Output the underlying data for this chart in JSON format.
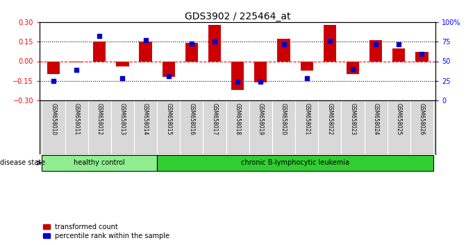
{
  "title": "GDS3902 / 225464_at",
  "samples": [
    "GSM658010",
    "GSM658011",
    "GSM658012",
    "GSM658013",
    "GSM658014",
    "GSM658015",
    "GSM658016",
    "GSM658017",
    "GSM658018",
    "GSM658019",
    "GSM658020",
    "GSM658021",
    "GSM658022",
    "GSM658023",
    "GSM658024",
    "GSM658025",
    "GSM658026"
  ],
  "red_values": [
    -0.1,
    -0.01,
    0.15,
    -0.04,
    0.15,
    -0.12,
    0.14,
    0.28,
    -0.22,
    -0.16,
    0.17,
    -0.07,
    0.28,
    -0.1,
    0.16,
    0.1,
    0.07
  ],
  "blue_values": [
    -0.15,
    -0.065,
    0.195,
    -0.13,
    0.16,
    -0.115,
    0.135,
    0.15,
    -0.155,
    -0.155,
    0.128,
    -0.13,
    0.155,
    -0.06,
    0.128,
    0.128,
    0.055
  ],
  "disease_groups": [
    {
      "label": "healthy control",
      "start": 0,
      "end": 5,
      "color": "#90EE90"
    },
    {
      "label": "chronic B-lymphocytic leukemia",
      "start": 5,
      "end": 17,
      "color": "#32CD32"
    }
  ],
  "disease_state_label": "disease state",
  "ylim": [
    -0.3,
    0.3
  ],
  "y2lim": [
    0,
    100
  ],
  "yticks": [
    -0.3,
    -0.15,
    0,
    0.15,
    0.3
  ],
  "y2ticks": [
    0,
    25,
    50,
    75,
    100
  ],
  "y2ticklabels": [
    "0",
    "25",
    "50",
    "75",
    "100%"
  ],
  "hlines": [
    -0.15,
    0.0,
    0.15
  ],
  "hline_styles": [
    "dotted",
    "dashed_red",
    "dotted"
  ],
  "bar_color": "#CC0000",
  "dot_color": "#0000CC",
  "bar_width": 0.55,
  "dot_size": 25,
  "legend_items": [
    "transformed count",
    "percentile rank within the sample"
  ],
  "legend_colors": [
    "#CC0000",
    "#0000CC"
  ],
  "background_color": "#ffffff",
  "title_fontsize": 10,
  "tick_fontsize": 7,
  "sample_label_fontsize": 5.5,
  "disease_fontsize": 7,
  "legend_fontsize": 7
}
